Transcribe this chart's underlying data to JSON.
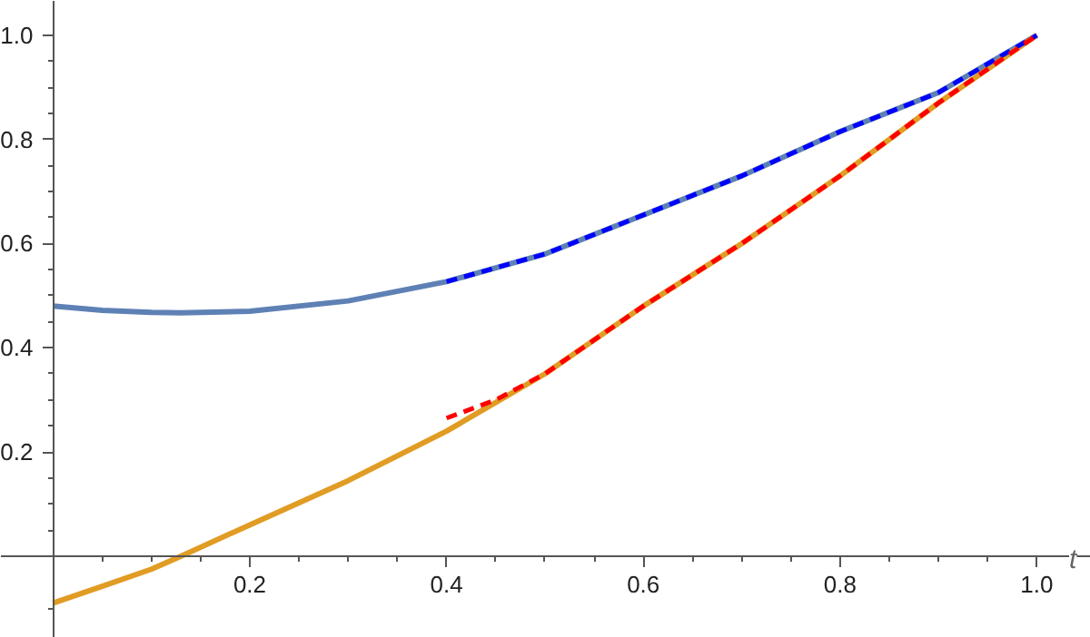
{
  "chart_data": {
    "type": "line",
    "xlabel": "t",
    "xlim": [
      -0.053,
      1.055
    ],
    "ylim": [
      -0.157,
      1.066
    ],
    "xticks": [
      {
        "value": 0.05,
        "label": null
      },
      {
        "value": 0.1,
        "label": null
      },
      {
        "value": 0.15,
        "label": null
      },
      0.2,
      {
        "value": 0.25,
        "label": null
      },
      {
        "value": 0.3,
        "label": null
      },
      {
        "value": 0.35,
        "label": null
      },
      0.4,
      {
        "value": 0.45,
        "label": null
      },
      {
        "value": 0.5,
        "label": null
      },
      {
        "value": 0.55,
        "label": null
      },
      0.6,
      {
        "value": 0.65,
        "label": null
      },
      {
        "value": 0.7,
        "label": null
      },
      {
        "value": 0.75,
        "label": null
      },
      0.8,
      {
        "value": 0.85,
        "label": null
      },
      {
        "value": 0.9,
        "label": null
      },
      {
        "value": 0.95,
        "label": null
      },
      {
        "value": 1.0,
        "label": "1.0"
      }
    ],
    "yticks": [
      {
        "value": -0.1,
        "label": null
      },
      {
        "value": 0.05,
        "label": null
      },
      {
        "value": 0.1,
        "label": null
      },
      {
        "value": 0.15,
        "label": null
      },
      0.2,
      {
        "value": 0.25,
        "label": null
      },
      {
        "value": 0.3,
        "label": null
      },
      {
        "value": 0.35,
        "label": null
      },
      0.4,
      {
        "value": 0.45,
        "label": null
      },
      {
        "value": 0.5,
        "label": null
      },
      {
        "value": 0.55,
        "label": null
      },
      0.6,
      {
        "value": 0.65,
        "label": null
      },
      {
        "value": 0.7,
        "label": null
      },
      {
        "value": 0.75,
        "label": null
      },
      0.8,
      {
        "value": 0.85,
        "label": null
      },
      {
        "value": 0.9,
        "label": null
      },
      {
        "value": 0.95,
        "label": null
      },
      {
        "value": 1.0,
        "label": "1.0"
      }
    ],
    "grid": false,
    "marker": "none",
    "series": [
      {
        "color": "#5e81b5",
        "line_style": "solid",
        "x": [
          0,
          0.05,
          0.1,
          0.13,
          0.2,
          0.3,
          0.4,
          0.5,
          0.6,
          0.7,
          0.8,
          0.9,
          1.0
        ],
        "values": [
          0.48,
          0.472,
          0.468,
          0.467,
          0.47,
          0.49,
          0.527,
          0.58,
          0.655,
          0.73,
          0.815,
          0.89,
          1.0
        ]
      },
      {
        "color": "#e19c24",
        "line_style": "solid",
        "x": [
          0,
          0.05,
          0.1,
          0.13,
          0.2,
          0.3,
          0.4,
          0.5,
          0.6,
          0.7,
          0.8,
          0.9,
          1.0
        ],
        "values": [
          -0.09,
          -0.058,
          -0.025,
          0.0,
          0.06,
          0.145,
          0.24,
          0.35,
          0.48,
          0.6,
          0.73,
          0.87,
          1.0
        ]
      },
      {
        "color": "#0000ff",
        "line_style": "dashed",
        "x": [
          0.4,
          0.5,
          0.6,
          0.7,
          0.8,
          0.9,
          1.0
        ],
        "values": [
          0.527,
          0.58,
          0.655,
          0.73,
          0.815,
          0.89,
          1.0
        ]
      },
      {
        "color": "#ff0000",
        "line_style": "dashed",
        "x": [
          0.4,
          0.45,
          0.5,
          0.6,
          0.7,
          0.8,
          0.9,
          1.0
        ],
        "values": [
          0.265,
          0.3,
          0.35,
          0.48,
          0.6,
          0.73,
          0.87,
          1.0
        ]
      }
    ]
  }
}
